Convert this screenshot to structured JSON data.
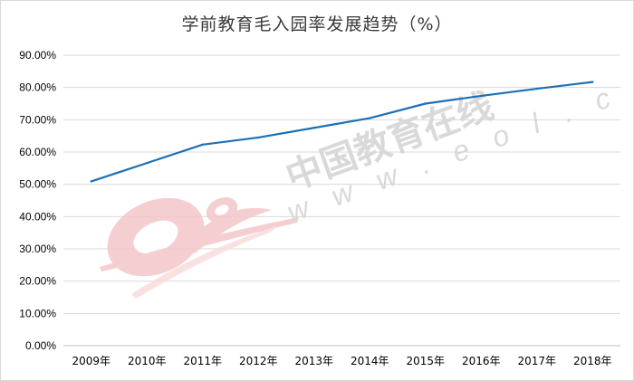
{
  "chart_data": {
    "type": "line",
    "title": "学前教育毛入园率发展趋势（%）",
    "categories": [
      "2009年",
      "2010年",
      "2011年",
      "2012年",
      "2013年",
      "2014年",
      "2015年",
      "2016年",
      "2017年",
      "2018年"
    ],
    "series": [
      {
        "values": [
          50.9,
          56.6,
          62.3,
          64.5,
          67.5,
          70.5,
          75.0,
          77.4,
          79.6,
          81.7
        ]
      }
    ],
    "ylim": [
      0,
      90
    ],
    "yticks": [
      "0.00%",
      "10.00%",
      "20.00%",
      "30.00%",
      "40.00%",
      "50.00%",
      "60.00%",
      "70.00%",
      "80.00%",
      "90.00%"
    ],
    "ytick_values": [
      0,
      10,
      20,
      30,
      40,
      50,
      60,
      70,
      80,
      90
    ],
    "grid": true,
    "xlabel": "",
    "ylabel": ""
  },
  "colors": {
    "line": "#1f6fb5",
    "grid": "#d9d9d9",
    "axis": "#bfbfbf",
    "watermark_logo": "#f3c7c9",
    "watermark_text": "#d9d9d9"
  },
  "watermark": {
    "logo": "eol",
    "brand": "中国教育在线",
    "url": "w w w . e o l . c n"
  }
}
